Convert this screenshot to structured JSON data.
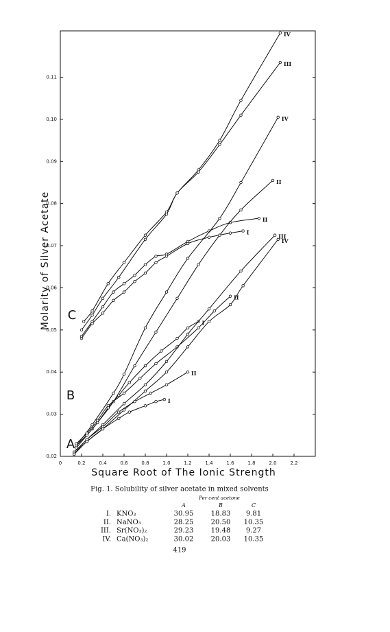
{
  "chart_data": {
    "type": "line",
    "x_label": "Square Root of The Ionic Strength",
    "y_label": "Molarity of Silver Acetate",
    "annotations": [
      "A",
      "B",
      "C"
    ],
    "xlim": [
      0,
      2.4
    ],
    "ylim": [
      0.02,
      0.121
    ],
    "xticks": [
      0,
      0.2,
      0.4,
      0.6,
      0.8,
      {
        "value": 1,
        "label": "1.0"
      },
      1.2,
      1.4,
      1.6,
      1.8,
      {
        "value": 2,
        "label": "2.0"
      },
      2.2
    ],
    "yticks": [
      0.02,
      0.03,
      0.04,
      0.05,
      0.06,
      0.07,
      0.08,
      0.09,
      {
        "value": 0.1,
        "label": "0.10"
      },
      0.11
    ],
    "color": "#111111",
    "series": [
      {
        "name": "IV",
        "x": [
          0.22,
          0.3,
          0.45,
          0.6,
          0.8,
          1.0,
          1.1,
          1.3,
          1.5,
          1.7,
          2.07
        ],
        "values": [
          0.052,
          0.0545,
          0.061,
          0.066,
          0.0725,
          0.078,
          0.0825,
          0.088,
          0.095,
          0.1045,
          0.1205
        ]
      },
      {
        "name": "III",
        "x": [
          0.2,
          0.3,
          0.4,
          0.55,
          0.8,
          1.0,
          1.1,
          1.3,
          1.5,
          1.7,
          2.07
        ],
        "values": [
          0.05,
          0.0535,
          0.0575,
          0.0625,
          0.0715,
          0.0775,
          0.0825,
          0.0875,
          0.094,
          0.101,
          0.1135
        ]
      },
      {
        "name": "II",
        "x": [
          0.2,
          0.3,
          0.4,
          0.5,
          0.6,
          0.7,
          0.8,
          0.9,
          1.0,
          1.2,
          1.4,
          1.6,
          1.87
        ],
        "values": [
          0.0485,
          0.052,
          0.0555,
          0.059,
          0.061,
          0.063,
          0.0655,
          0.0675,
          0.068,
          0.071,
          0.0735,
          0.0755,
          0.0765
        ]
      },
      {
        "name": "I",
        "x": [
          0.2,
          0.3,
          0.4,
          0.5,
          0.6,
          0.7,
          0.8,
          0.9,
          1.0,
          1.2,
          1.4,
          1.6,
          1.72
        ],
        "values": [
          0.048,
          0.0515,
          0.054,
          0.057,
          0.059,
          0.0615,
          0.0635,
          0.066,
          0.0675,
          0.0705,
          0.072,
          0.073,
          0.0735
        ]
      },
      {
        "name": "IV",
        "x": [
          0.15,
          0.3,
          0.5,
          0.6,
          0.8,
          1.0,
          1.2,
          1.5,
          1.7,
          2.05
        ],
        "values": [
          0.0225,
          0.0275,
          0.035,
          0.0395,
          0.0505,
          0.059,
          0.067,
          0.0765,
          0.085,
          0.1005
        ]
      },
      {
        "name": "II",
        "x": [
          0.15,
          0.3,
          0.5,
          0.7,
          0.9,
          1.1,
          1.3,
          1.5,
          1.7,
          2.0
        ],
        "values": [
          0.0225,
          0.0265,
          0.033,
          0.0415,
          0.0495,
          0.0575,
          0.0655,
          0.0725,
          0.0785,
          0.0855
        ]
      },
      {
        "name": "II",
        "x": [
          0.15,
          0.25,
          0.35,
          0.45,
          0.6,
          0.75,
          0.9,
          1.1,
          1.3,
          1.45,
          1.6
        ],
        "values": [
          0.023,
          0.0255,
          0.0285,
          0.032,
          0.035,
          0.0385,
          0.042,
          0.046,
          0.0505,
          0.0545,
          0.058
        ]
      },
      {
        "name": "I",
        "x": [
          0.15,
          0.25,
          0.35,
          0.45,
          0.55,
          0.65,
          0.8,
          0.95,
          1.1,
          1.2,
          1.3
        ],
        "values": [
          0.022,
          0.025,
          0.028,
          0.0315,
          0.0345,
          0.0375,
          0.0415,
          0.045,
          0.048,
          0.0505,
          0.052
        ]
      },
      {
        "name": "III",
        "x": [
          0.13,
          0.25,
          0.4,
          0.6,
          0.8,
          1.0,
          1.2,
          1.4,
          1.7,
          2.02
        ],
        "values": [
          0.021,
          0.024,
          0.0275,
          0.0325,
          0.037,
          0.0425,
          0.049,
          0.055,
          0.064,
          0.0725
        ]
      },
      {
        "name": "IV",
        "x": [
          0.13,
          0.25,
          0.4,
          0.6,
          0.8,
          1.0,
          1.2,
          1.4,
          1.6,
          1.72,
          2.05
        ],
        "values": [
          0.0205,
          0.0235,
          0.0265,
          0.031,
          0.0355,
          0.04,
          0.046,
          0.052,
          0.056,
          0.0605,
          0.0715
        ]
      },
      {
        "name": "II",
        "x": [
          0.13,
          0.25,
          0.4,
          0.55,
          0.7,
          0.85,
          1.0,
          1.2
        ],
        "values": [
          0.0205,
          0.024,
          0.027,
          0.0305,
          0.033,
          0.035,
          0.037,
          0.04
        ]
      },
      {
        "name": "I",
        "x": [
          0.13,
          0.25,
          0.4,
          0.55,
          0.65,
          0.8,
          0.9,
          0.98
        ],
        "values": [
          0.0205,
          0.0235,
          0.0265,
          0.029,
          0.0305,
          0.032,
          0.033,
          0.0335
        ]
      }
    ]
  },
  "caption": "Fig. 1. Solubility of silver acetate in mixed solvents",
  "table": {
    "super_header": "Per cent acetone",
    "header": [
      "A",
      "B",
      "C"
    ],
    "rows": [
      [
        "I.",
        "KNO₃",
        "30.95",
        "18.83",
        "9.81"
      ],
      [
        "II.",
        "NaNO₃",
        "28.25",
        "20.50",
        "10.35"
      ],
      [
        "III.",
        "Sr(NO₃)₂",
        "29.23",
        "19.48",
        "9.27"
      ],
      [
        "IV.",
        "Ca(NO₃)₂",
        "30.02",
        "20.03",
        "10.35"
      ]
    ]
  },
  "page_number": "419"
}
